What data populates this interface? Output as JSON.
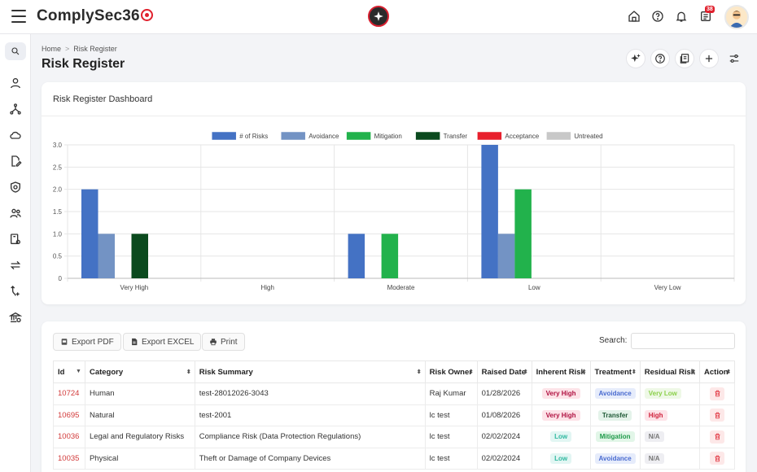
{
  "header": {
    "logo_text": "ComplySec36",
    "notification_count": "38"
  },
  "breadcrumb": {
    "home": "Home",
    "separator": ">",
    "current": "Risk Register"
  },
  "page_title": "Risk Register",
  "dashboard": {
    "title": "Risk Register Dashboard"
  },
  "chart_data": {
    "type": "bar",
    "categories": [
      "Very High",
      "High",
      "Moderate",
      "Low",
      "Very Low"
    ],
    "series": [
      {
        "name": "# of Risks",
        "color": "#4472c4",
        "values": [
          2,
          0,
          1,
          3,
          0
        ]
      },
      {
        "name": "Avoidance",
        "color": "#7393c4",
        "values": [
          1,
          0,
          0,
          1,
          0
        ]
      },
      {
        "name": "Mitigation",
        "color": "#22b24c",
        "values": [
          0,
          0,
          1,
          2,
          0
        ]
      },
      {
        "name": "Transfer",
        "color": "#0b4a1e",
        "values": [
          1,
          0,
          0,
          0,
          0
        ]
      },
      {
        "name": "Acceptance",
        "color": "#e8202d",
        "values": [
          0,
          0,
          0,
          0,
          0
        ]
      },
      {
        "name": "Untreated",
        "color": "#c8c8c8",
        "values": [
          0,
          0,
          0,
          0,
          0
        ]
      }
    ],
    "yticks": [
      "0",
      "0.5",
      "1.0",
      "1.5",
      "2.0",
      "2.5",
      "3.0"
    ],
    "ylim": [
      0,
      3
    ],
    "legend": "top-center",
    "grid": true
  },
  "toolbar": {
    "export_pdf": "Export PDF",
    "export_excel": "Export EXCEL",
    "print": "Print",
    "search_label": "Search:",
    "search_value": ""
  },
  "table": {
    "columns": [
      "Id",
      "Category",
      "Risk Summary",
      "Risk Owner",
      "Raised Date",
      "Inherent Risk",
      "Treatment",
      "Residual Risk",
      "Action"
    ],
    "rows": [
      {
        "id": "10724",
        "category": "Human",
        "summary": "test-28012026-3043",
        "owner": "Raj Kumar",
        "date": "01/28/2026",
        "inherent": "Very High",
        "treatment": "Avoidance",
        "residual": "Very Low"
      },
      {
        "id": "10695",
        "category": "Natural",
        "summary": "test-2001",
        "owner": "lc test",
        "date": "01/08/2026",
        "inherent": "Very High",
        "treatment": "Transfer",
        "residual": "High"
      },
      {
        "id": "10036",
        "category": "Legal and Regulatory Risks",
        "summary": "Compliance Risk (Data Protection Regulations)",
        "owner": "lc test",
        "date": "02/02/2024",
        "inherent": "Low",
        "treatment": "Mitigation",
        "residual": "N/A"
      },
      {
        "id": "10035",
        "category": "Physical",
        "summary": "Theft or Damage of Company Devices",
        "owner": "lc test",
        "date": "02/02/2024",
        "inherent": "Low",
        "treatment": "Avoidance",
        "residual": "N/A"
      }
    ]
  },
  "pill_styles": {
    "Very High": {
      "bg": "#fde3e8",
      "fg": "#b01040"
    },
    "High": {
      "bg": "#fde3e8",
      "fg": "#d0203a"
    },
    "Low": {
      "bg": "#e2f6f3",
      "fg": "#2fb8a0"
    },
    "Very Low": {
      "bg": "#eef8e6",
      "fg": "#8bd04a"
    },
    "N/A": {
      "bg": "#eeeef2",
      "fg": "#777"
    },
    "Avoidance": {
      "bg": "#e6ecfb",
      "fg": "#4a6bd0"
    },
    "Transfer": {
      "bg": "#e4f3ea",
      "fg": "#1f5a36"
    },
    "Mitigation": {
      "bg": "#e2f6e8",
      "fg": "#1f9a4a"
    }
  }
}
